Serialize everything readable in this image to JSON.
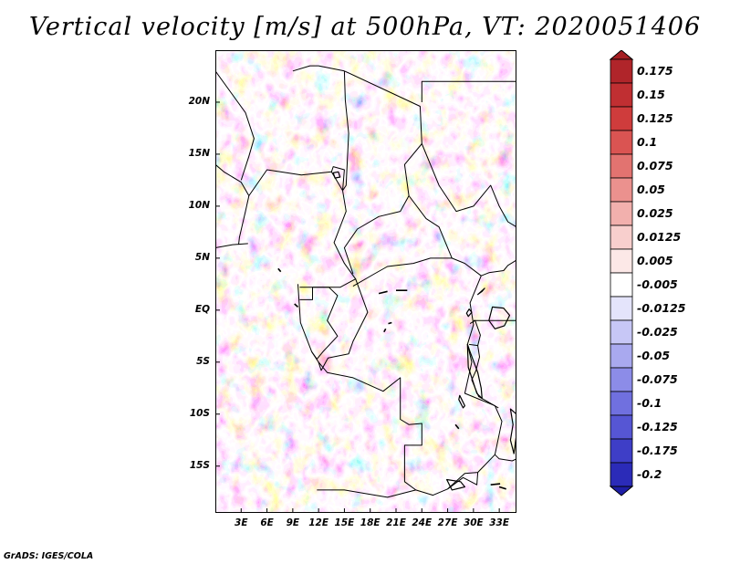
{
  "title": "Vertical velocity [m/s] at 500hPa, VT: 2020051406",
  "footer": "GrADS: IGES/COLA",
  "map": {
    "lon_range": [
      0,
      35
    ],
    "lat_range": [
      -19.5,
      25
    ],
    "lat_ticks": [
      {
        "value": 20,
        "label": "20N"
      },
      {
        "value": 15,
        "label": "15N"
      },
      {
        "value": 10,
        "label": "10N"
      },
      {
        "value": 5,
        "label": "5N"
      },
      {
        "value": 0,
        "label": "EQ"
      },
      {
        "value": -5,
        "label": "5S"
      },
      {
        "value": -10,
        "label": "10S"
      },
      {
        "value": -15,
        "label": "15S"
      }
    ],
    "lon_ticks": [
      {
        "value": 3,
        "label": "3E"
      },
      {
        "value": 6,
        "label": "6E"
      },
      {
        "value": 9,
        "label": "9E"
      },
      {
        "value": 12,
        "label": "12E"
      },
      {
        "value": 15,
        "label": "15E"
      },
      {
        "value": 18,
        "label": "18E"
      },
      {
        "value": 21,
        "label": "21E"
      },
      {
        "value": 24,
        "label": "24E"
      },
      {
        "value": 27,
        "label": "27E"
      },
      {
        "value": 30,
        "label": "30E"
      },
      {
        "value": 33,
        "label": "33E"
      }
    ]
  },
  "colorbar": {
    "levels": [
      {
        "label": "0.175",
        "color": "#b0252a"
      },
      {
        "label": "0.15",
        "color": "#c02f32"
      },
      {
        "label": "0.125",
        "color": "#cf3c3c"
      },
      {
        "label": "0.1",
        "color": "#da5452"
      },
      {
        "label": "0.075",
        "color": "#e27370"
      },
      {
        "label": "0.05",
        "color": "#eb918e"
      },
      {
        "label": "0.025",
        "color": "#f2b0ad"
      },
      {
        "label": "0.0125",
        "color": "#f8cfcd"
      },
      {
        "label": "0.005",
        "color": "#fce8e7"
      },
      {
        "label": "-0.005",
        "color": "#ffffff"
      },
      {
        "label": "-0.0125",
        "color": "#e4e4fb"
      },
      {
        "label": "-0.025",
        "color": "#c7c7f6"
      },
      {
        "label": "-0.05",
        "color": "#a9a9ef"
      },
      {
        "label": "-0.075",
        "color": "#8c8ce8"
      },
      {
        "label": "-0.1",
        "color": "#7070df"
      },
      {
        "label": "-0.125",
        "color": "#5656d4"
      },
      {
        "label": "-0.175",
        "color": "#3e3ec7"
      },
      {
        "label": "-0.2",
        "color": "#2b2bb8"
      }
    ],
    "over_color": "#a51e22",
    "under_color": "#1e1ea6"
  },
  "boundaries": [
    [
      [
        3.9,
        11.0
      ],
      [
        6.0,
        13.5
      ],
      [
        10.0,
        13.0
      ],
      [
        13.5,
        13.3
      ],
      [
        14.8,
        11.5
      ],
      [
        15.2,
        9.5
      ],
      [
        13.8,
        6.5
      ],
      [
        15.0,
        4.5
      ],
      [
        16.3,
        3.0
      ],
      [
        14.5,
        2.2
      ],
      [
        11.3,
        2.2
      ],
      [
        9.8,
        2.2
      ]
    ],
    [
      [
        9.6,
        2.5
      ],
      [
        9.9,
        -1.2
      ],
      [
        11.2,
        -4.0
      ],
      [
        12.0,
        -5.0
      ],
      [
        13.0,
        -6.0
      ],
      [
        16.0,
        -6.5
      ],
      [
        19.5,
        -7.8
      ],
      [
        21.5,
        -6.5
      ],
      [
        21.5,
        -10.5
      ],
      [
        22.5,
        -11.0
      ],
      [
        24.0,
        -10.9
      ],
      [
        24.0,
        -13.0
      ],
      [
        22.0,
        -13.0
      ],
      [
        22.0,
        -16.5
      ],
      [
        23.3,
        -17.3
      ],
      [
        20.0,
        -18.0
      ],
      [
        15.0,
        -17.3
      ],
      [
        11.8,
        -17.3
      ]
    ],
    [
      [
        23.3,
        -17.3
      ],
      [
        25.3,
        -17.8
      ],
      [
        27.0,
        -17.2
      ],
      [
        29.0,
        -15.7
      ],
      [
        30.5,
        -15.6
      ],
      [
        32.5,
        -13.9
      ],
      [
        33.3,
        -10.7
      ],
      [
        32.5,
        -9.2
      ],
      [
        29.0,
        -8.0
      ],
      [
        29.8,
        -5.0
      ],
      [
        29.3,
        -3.3
      ],
      [
        30.0,
        -1.4
      ],
      [
        29.6,
        0.7
      ],
      [
        30.9,
        3.3
      ],
      [
        31.8,
        3.6
      ],
      [
        33.5,
        3.8
      ],
      [
        34.0,
        4.3
      ],
      [
        35.0,
        4.8
      ]
    ],
    [
      [
        15.0,
        23.0
      ],
      [
        23.8,
        19.6
      ],
      [
        24.0,
        16.0
      ],
      [
        22.0,
        14.0
      ],
      [
        22.5,
        11.0
      ],
      [
        24.5,
        8.8
      ],
      [
        26.0,
        8.0
      ],
      [
        27.5,
        5.0
      ],
      [
        25.0,
        5.0
      ],
      [
        23.0,
        4.5
      ],
      [
        20.0,
        4.2
      ],
      [
        18.5,
        3.5
      ],
      [
        16.0,
        2.3
      ]
    ],
    [
      [
        16.0,
        3.5
      ],
      [
        15.0,
        6.0
      ],
      [
        16.5,
        7.8
      ],
      [
        19.0,
        9.0
      ],
      [
        21.5,
        9.5
      ],
      [
        22.5,
        11.0
      ]
    ],
    [
      [
        24.0,
        20.0
      ],
      [
        24.0,
        22.0
      ],
      [
        25.0,
        22.0
      ],
      [
        35.0,
        22.0
      ]
    ],
    [
      [
        27.5,
        5.0
      ],
      [
        29.0,
        4.5
      ],
      [
        30.9,
        3.3
      ]
    ],
    [
      [
        24.0,
        16.0
      ],
      [
        26.0,
        12.0
      ],
      [
        28.0,
        9.5
      ],
      [
        30.0,
        10.0
      ],
      [
        32.0,
        12.0
      ],
      [
        33.0,
        10.0
      ],
      [
        34.0,
        8.5
      ],
      [
        35.0,
        8.0
      ]
    ],
    [
      [
        3.8,
        6.4
      ],
      [
        2.0,
        6.3
      ],
      [
        0.0,
        6.0
      ]
    ],
    [
      [
        0.0,
        14.0
      ],
      [
        1.0,
        13.3
      ],
      [
        3.0,
        12.3
      ],
      [
        3.9,
        11.0
      ],
      [
        3.5,
        9.5
      ],
      [
        2.8,
        7.0
      ],
      [
        2.7,
        6.3
      ]
    ],
    [
      [
        0.0,
        23.0
      ],
      [
        3.5,
        19.0
      ],
      [
        4.5,
        16.5
      ],
      [
        3.9,
        14.8
      ],
      [
        3.0,
        12.5
      ]
    ],
    [
      [
        9.0,
        23.0
      ],
      [
        11.0,
        23.5
      ],
      [
        12.0,
        23.5
      ],
      [
        15.0,
        23.0
      ]
    ],
    [
      [
        11.3,
        2.2
      ],
      [
        11.3,
        1.0
      ],
      [
        9.8,
        1.0
      ]
    ],
    [
      [
        11.3,
        2.2
      ],
      [
        13.2,
        2.2
      ],
      [
        14.2,
        1.4
      ],
      [
        13.0,
        -1.0
      ],
      [
        14.2,
        -2.5
      ],
      [
        12.5,
        -4.0
      ],
      [
        11.8,
        -4.7
      ],
      [
        11.2,
        -4.0
      ]
    ],
    [
      [
        16.3,
        3.0
      ],
      [
        17.7,
        -0.2
      ],
      [
        16.0,
        -3.0
      ],
      [
        15.5,
        -4.2
      ],
      [
        13.1,
        -4.6
      ],
      [
        12.3,
        -5.8
      ],
      [
        12.0,
        -5.0
      ]
    ],
    [
      [
        29.6,
        -1.3
      ],
      [
        30.2,
        -1.0
      ],
      [
        30.8,
        -2.4
      ],
      [
        30.5,
        -3.4
      ],
      [
        29.5,
        -3.3
      ]
    ],
    [
      [
        30.0,
        -1.0
      ],
      [
        31.0,
        -1.0
      ],
      [
        33.9,
        -1.0
      ],
      [
        35.0,
        -1.0
      ]
    ],
    [
      [
        30.5,
        -3.4
      ],
      [
        30.7,
        -4.5
      ],
      [
        30.3,
        -5.8
      ],
      [
        29.8,
        -6.7
      ],
      [
        30.6,
        -8.3
      ],
      [
        32.9,
        -9.4
      ]
    ],
    [
      [
        32.5,
        -13.9
      ],
      [
        33.0,
        -14.3
      ],
      [
        34.5,
        -14.5
      ],
      [
        35.0,
        -14.3
      ]
    ],
    [
      [
        30.5,
        -15.6
      ],
      [
        30.4,
        -16.8
      ],
      [
        28.8,
        -16.1
      ],
      [
        27.0,
        -17.2
      ]
    ],
    [
      [
        14.8,
        11.5
      ],
      [
        15.0,
        13.5
      ],
      [
        13.7,
        13.8
      ],
      [
        13.5,
        13.3
      ]
    ],
    [
      [
        15.0,
        23.0
      ],
      [
        15.1,
        20.2
      ],
      [
        15.5,
        17.0
      ],
      [
        15.2,
        12.0
      ],
      [
        14.8,
        11.5
      ]
    ]
  ],
  "lakes": [
    [
      [
        29.3,
        -3.3
      ],
      [
        29.4,
        -5.5
      ],
      [
        29.8,
        -6.5
      ],
      [
        30.4,
        -8.0
      ],
      [
        31.0,
        -8.5
      ],
      [
        30.9,
        -7.5
      ],
      [
        30.5,
        -6.0
      ],
      [
        29.6,
        -4.0
      ]
    ],
    [
      [
        34.3,
        -9.5
      ],
      [
        34.6,
        -11.0
      ],
      [
        34.3,
        -12.5
      ],
      [
        34.7,
        -13.8
      ],
      [
        35.0,
        -12.0
      ],
      [
        35.0,
        -10.0
      ]
    ],
    [
      [
        31.8,
        -1.0
      ],
      [
        32.2,
        0.3
      ],
      [
        33.5,
        0.2
      ],
      [
        34.2,
        -0.5
      ],
      [
        33.6,
        -1.5
      ],
      [
        32.5,
        -1.8
      ]
    ],
    [
      [
        29.2,
        -0.3
      ],
      [
        29.4,
        -0.6
      ],
      [
        29.8,
        -0.2
      ],
      [
        29.5,
        0.1
      ]
    ],
    [
      [
        30.5,
        1.5
      ],
      [
        31.3,
        2.1
      ],
      [
        31.0,
        1.8
      ]
    ],
    [
      [
        28.4,
        -8.2
      ],
      [
        29.0,
        -9.2
      ],
      [
        28.8,
        -9.4
      ],
      [
        28.3,
        -8.6
      ]
    ],
    [
      [
        26.9,
        -16.3
      ],
      [
        28.5,
        -16.5
      ],
      [
        29.0,
        -17.0
      ],
      [
        27.5,
        -17.3
      ]
    ],
    [
      [
        13.7,
        13.2
      ],
      [
        14.3,
        13.3
      ],
      [
        14.5,
        12.8
      ],
      [
        13.9,
        12.7
      ]
    ]
  ],
  "streaks": [
    [
      [
        19.0,
        1.6
      ],
      [
        20.0,
        1.8
      ]
    ],
    [
      [
        21.0,
        1.9
      ],
      [
        22.3,
        1.9
      ]
    ],
    [
      [
        20.1,
        -1.3
      ],
      [
        20.5,
        -1.2
      ]
    ],
    [
      [
        7.3,
        4.0
      ],
      [
        7.6,
        3.7
      ]
    ],
    [
      [
        9.2,
        0.6
      ],
      [
        9.6,
        0.3
      ]
    ],
    [
      [
        19.6,
        -2.1
      ],
      [
        19.8,
        -1.8
      ]
    ],
    [
      [
        27.9,
        -11.0
      ],
      [
        28.3,
        -11.4
      ]
    ],
    [
      [
        33.0,
        -17.0
      ],
      [
        33.8,
        -17.2
      ]
    ],
    [
      [
        32.0,
        -16.8
      ],
      [
        33.1,
        -16.7
      ]
    ]
  ]
}
